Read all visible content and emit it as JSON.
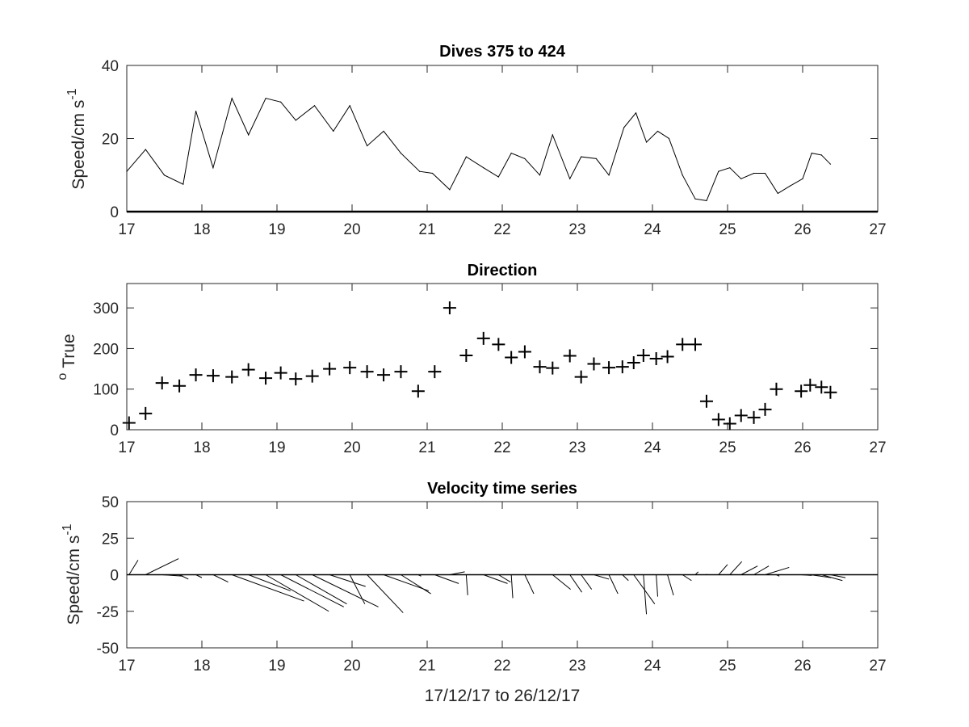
{
  "figure": {
    "xlabel": "17/12/17 to 26/12/17"
  },
  "chart_data": [
    {
      "type": "line",
      "title": "Dives 375 to 424",
      "xlabel": "",
      "ylabel": "Speed/cm s",
      "ylabel_superscript": "-1",
      "xlim": [
        17,
        27
      ],
      "ylim": [
        0,
        40
      ],
      "xticks": [
        "17",
        "18",
        "19",
        "20",
        "21",
        "22",
        "23",
        "24",
        "25",
        "26",
        "27"
      ],
      "yticks": [
        "0",
        "20",
        "40"
      ],
      "line_color": "#000000",
      "series": [
        {
          "x": [
            17.0,
            17.25,
            17.5,
            17.75,
            17.92,
            18.15,
            18.4,
            18.62,
            18.85,
            19.05,
            19.25,
            19.5,
            19.75,
            19.97,
            20.2,
            20.42,
            20.65,
            20.9,
            21.07,
            21.3,
            21.52,
            21.75,
            21.95,
            22.12,
            22.3,
            22.5,
            22.67,
            22.9,
            23.05,
            23.25,
            23.42,
            23.62,
            23.78,
            23.92,
            24.07,
            24.22,
            24.4,
            24.57,
            24.72,
            24.88,
            25.03,
            25.18,
            25.35,
            25.5,
            25.67,
            25.83,
            26.0,
            26.12,
            26.25,
            26.37
          ],
          "values": [
            11,
            17,
            10,
            7.5,
            27.5,
            12,
            31,
            21,
            31,
            30,
            25,
            29,
            22,
            29,
            18,
            22,
            16,
            11,
            10.5,
            6,
            15,
            12,
            9.5,
            16,
            14.5,
            10,
            21,
            9,
            15,
            14.5,
            10,
            23,
            27,
            19,
            22,
            20,
            10,
            3.5,
            3,
            11,
            12,
            9,
            10.5,
            10.5,
            5,
            7,
            9,
            16,
            15.5,
            13
          ]
        }
      ]
    },
    {
      "type": "scatter",
      "title": "Direction",
      "xlabel": "",
      "ylabel": "True",
      "ylabel_prefix": "o",
      "xlim": [
        17,
        27
      ],
      "ylim": [
        0,
        360
      ],
      "xticks": [
        "17",
        "18",
        "19",
        "20",
        "21",
        "22",
        "23",
        "24",
        "25",
        "26",
        "27"
      ],
      "yticks": [
        "0",
        "100",
        "200",
        "300"
      ],
      "marker": "+",
      "marker_color": "#000000",
      "series": [
        {
          "x": [
            17.03,
            17.25,
            17.47,
            17.7,
            17.92,
            18.15,
            18.4,
            18.62,
            18.85,
            19.05,
            19.25,
            19.47,
            19.7,
            19.97,
            20.2,
            20.42,
            20.65,
            20.88,
            21.1,
            21.3,
            21.52,
            21.75,
            21.95,
            22.12,
            22.3,
            22.5,
            22.67,
            22.9,
            23.05,
            23.22,
            23.42,
            23.6,
            23.75,
            23.88,
            24.05,
            24.2,
            24.4,
            24.57,
            24.72,
            24.88,
            25.03,
            25.18,
            25.35,
            25.5,
            25.65,
            25.98,
            26.1,
            26.25,
            26.37
          ],
          "values": [
            17,
            40,
            115,
            108,
            135,
            133,
            130,
            148,
            127,
            140,
            125,
            132,
            150,
            153,
            143,
            135,
            143,
            95,
            143,
            300,
            183,
            225,
            210,
            178,
            192,
            155,
            152,
            182,
            130,
            162,
            153,
            155,
            165,
            183,
            175,
            180,
            210,
            210,
            70,
            25,
            15,
            35,
            30,
            50,
            100,
            95,
            110,
            105,
            92
          ]
        }
      ]
    },
    {
      "type": "quiver",
      "title": "Velocity time series",
      "xlabel": "17/12/17 to 26/12/17",
      "ylabel": "Speed/cm s",
      "ylabel_superscript": "-1",
      "xlim": [
        17,
        27
      ],
      "ylim": [
        -50,
        50
      ],
      "xticks": [
        "17",
        "18",
        "19",
        "20",
        "21",
        "22",
        "23",
        "24",
        "25",
        "26",
        "27"
      ],
      "yticks": [
        "-50",
        "-25",
        "0",
        "25",
        "50"
      ],
      "baseline": 0,
      "stick_color": "#000000",
      "x_units_per_cm_s": 0.04,
      "series": [
        {
          "x": [
            17.03,
            17.25,
            17.47,
            17.7,
            17.92,
            18.15,
            18.4,
            18.62,
            18.85,
            19.05,
            19.25,
            19.47,
            19.7,
            19.97,
            20.2,
            20.42,
            20.65,
            20.88,
            21.1,
            21.3,
            21.52,
            21.75,
            21.95,
            22.12,
            22.3,
            22.5,
            22.67,
            22.9,
            23.05,
            23.22,
            23.42,
            23.6,
            23.75,
            23.88,
            24.05,
            24.2,
            24.4,
            24.57,
            24.72,
            24.88,
            25.03,
            25.18,
            25.35,
            25.5,
            25.65,
            25.98,
            26.1,
            26.25,
            26.37
          ],
          "u": [
            3,
            11,
            7,
            3,
            2,
            5,
            24,
            14,
            21,
            21,
            17,
            22,
            12,
            5,
            12,
            15,
            10,
            1,
            8,
            5,
            0.5,
            8,
            4,
            0.5,
            3,
            0,
            6,
            4,
            3.5,
            5,
            3,
            2,
            7,
            1,
            0.5,
            2,
            3,
            1,
            0,
            3,
            4,
            5.5,
            5,
            8,
            1,
            3.5,
            7,
            7,
            5
          ],
          "v": [
            10,
            11,
            -1,
            -3,
            -2,
            -5,
            -18,
            -11,
            -25,
            -22,
            -20,
            -22,
            -8,
            -20,
            -26,
            -11,
            -13,
            -1,
            -6,
            2,
            -14,
            -6,
            -5,
            -16,
            -13,
            0,
            -10,
            -12,
            -10,
            -3,
            -13,
            -4,
            -20,
            -27,
            -15,
            -14,
            -4,
            2,
            0.5,
            7,
            9,
            6,
            6,
            5,
            -1,
            -0.5,
            -2,
            -4,
            -2
          ]
        }
      ]
    }
  ]
}
